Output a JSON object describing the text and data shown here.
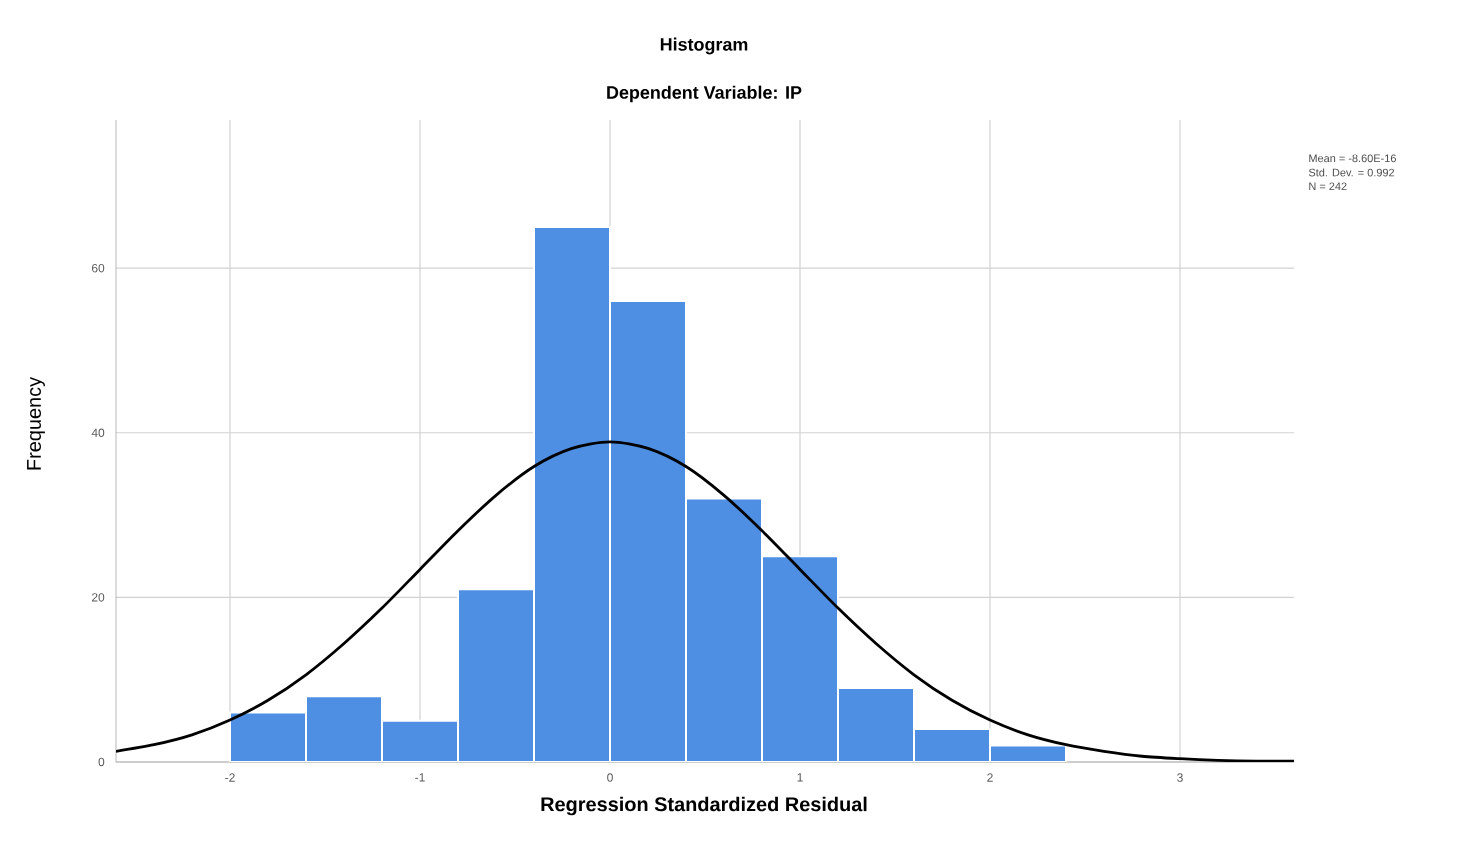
{
  "chart_data": {
    "type": "histogram",
    "title": "Histogram",
    "subtitle": "Dependent Variable: IP",
    "xlabel": "Regression Standardized Residual",
    "ylabel": "Frequency",
    "xlim": [
      -2.6,
      3.6
    ],
    "xticks": [
      -2,
      -1,
      0,
      1,
      2,
      3
    ],
    "ylim": [
      0,
      78
    ],
    "yticks": [
      0,
      20,
      40,
      60
    ],
    "grid": true,
    "series": [
      {
        "color": "#4e8fe3",
        "bins": [
          -2.0,
          -1.6,
          -1.2,
          -0.8,
          -0.4,
          0.0,
          0.4,
          0.8,
          1.2,
          1.6,
          2.0,
          2.4
        ],
        "values": [
          6,
          8,
          5,
          21,
          65,
          56,
          32,
          25,
          9,
          4,
          2
        ]
      },
      {
        "type": "line",
        "color": "#000000",
        "marker": "none",
        "x": [
          -2.6,
          -2.4,
          -2.2,
          -2.0,
          -1.8,
          -1.6,
          -1.4,
          -1.2,
          -1.0,
          -0.8,
          -0.6,
          -0.4,
          -0.2,
          0.0,
          0.2,
          0.4,
          0.6,
          0.8,
          1.0,
          1.2,
          1.4,
          1.6,
          1.8,
          2.0,
          2.2,
          2.4,
          2.6,
          2.8,
          3.0,
          3.2,
          3.4,
          3.6
        ],
        "values": [
          1.3,
          2.1,
          3.3,
          5.1,
          7.5,
          10.6,
          14.4,
          18.7,
          23.4,
          28.1,
          32.4,
          35.9,
          38.1,
          38.9,
          38.1,
          35.9,
          32.4,
          28.1,
          23.4,
          18.7,
          14.4,
          10.6,
          7.5,
          5.1,
          3.3,
          2.1,
          1.3,
          0.7,
          0.4,
          0.2,
          0.1,
          0.1
        ]
      }
    ],
    "annotations": [
      "Mean = -8.60E-16",
      "Std. Dev. = 0.992",
      "N = 242"
    ]
  }
}
